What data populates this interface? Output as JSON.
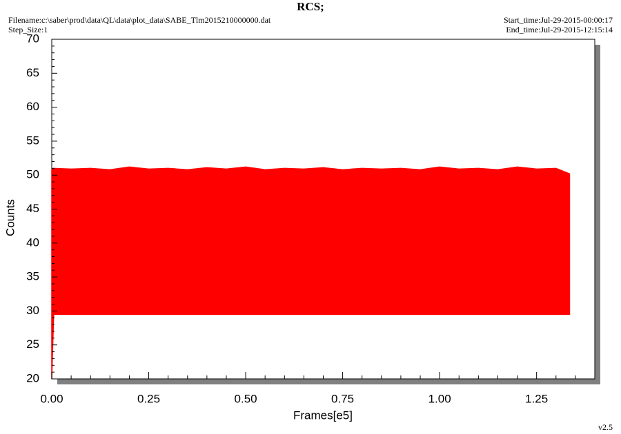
{
  "chart_data": {
    "type": "range",
    "title": "RCS;",
    "filename": "Filename:c:\\saber\\prod\\data\\QL\\data\\plot_data\\SABE_Tlm2015210000000.dat",
    "step_size": "Step_Size:1",
    "start_time": "Start_time:Jul-29-2015-00:00:17",
    "end_time": "End_time:Jul-29-2015-12:15:14",
    "version": "v2.5",
    "x_label": "Frames[e5]",
    "y_label": "Counts",
    "color": "#ff0000",
    "x": [
      0,
      0.005,
      0.05,
      0.1,
      0.15,
      0.2,
      0.25,
      0.3,
      0.35,
      0.4,
      0.45,
      0.5,
      0.55,
      0.6,
      0.65,
      0.7,
      0.75,
      0.8,
      0.85,
      0.9,
      0.95,
      1.0,
      1.05,
      1.1,
      1.15,
      1.2,
      1.25,
      1.3,
      1.335
    ],
    "high": [
      50.8,
      51,
      50.9,
      51,
      50.8,
      51.2,
      50.9,
      51,
      50.8,
      51.1,
      50.9,
      51.2,
      50.8,
      51,
      50.9,
      51.1,
      50.8,
      51,
      50.9,
      51,
      50.8,
      51.2,
      50.9,
      51,
      50.8,
      51.2,
      50.9,
      51,
      50.2
    ],
    "low": [
      20,
      29.5,
      29.5,
      29.5,
      29.5,
      29.5,
      29.5,
      29.5,
      29.5,
      29.5,
      29.5,
      29.5,
      29.5,
      29.5,
      29.5,
      29.5,
      29.5,
      29.5,
      29.5,
      29.5,
      29.5,
      29.5,
      29.5,
      29.5,
      29.5,
      29.5,
      29.5,
      29.5,
      29.5
    ],
    "xlim": [
      0,
      1.4
    ],
    "ylim": [
      20,
      70
    ],
    "xticks": [
      {
        "value": 0,
        "label": "0.00"
      },
      {
        "value": 0.25,
        "label": "0.25"
      },
      {
        "value": 0.5,
        "label": "0.50"
      },
      {
        "value": 0.75,
        "label": "0.75"
      },
      {
        "value": 1,
        "label": "1.00"
      },
      {
        "value": 1.25,
        "label": "1.25"
      }
    ],
    "yticks": [
      20,
      25,
      30,
      35,
      40,
      45,
      50,
      55,
      60,
      65,
      70
    ],
    "xminorticks": [
      0.05,
      0.1,
      0.15,
      0.2,
      0.3,
      0.35,
      0.4,
      0.45,
      0.55,
      0.6,
      0.65,
      0.7,
      0.8,
      0.85,
      0.9,
      0.95,
      1.05,
      1.1,
      1.15,
      1.2,
      1.3,
      1.35
    ],
    "yminorticks": [
      21,
      22,
      23,
      24,
      26,
      27,
      28,
      29,
      31,
      32,
      33,
      34,
      36,
      37,
      38,
      39,
      41,
      42,
      43,
      44,
      46,
      47,
      48,
      49,
      51,
      52,
      53,
      54,
      56,
      57,
      58,
      59,
      61,
      62,
      63,
      64,
      66,
      67,
      68,
      69
    ]
  }
}
